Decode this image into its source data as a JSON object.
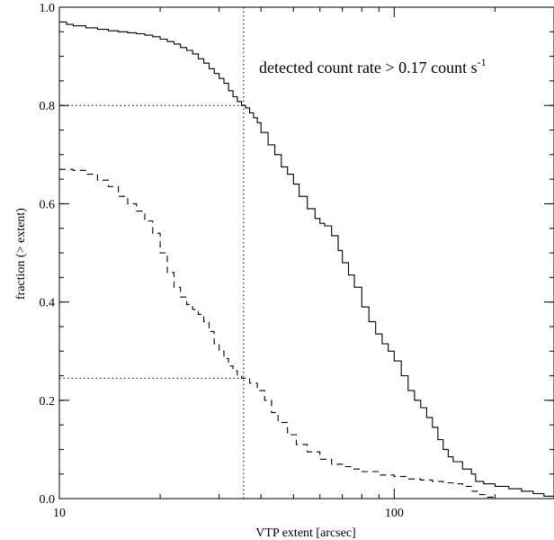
{
  "chart_data": {
    "type": "line",
    "title": "",
    "xlabel": "VTP extent [arcsec]",
    "ylabel": "fraction (> extent)",
    "xscale": "log",
    "xlim": [
      10,
      300
    ],
    "ylim": [
      0.0,
      1.0
    ],
    "xticks": [
      {
        "value": 10,
        "label": "10"
      },
      {
        "value": 100,
        "label": "100"
      }
    ],
    "yticks": [
      {
        "value": 0.0,
        "label": "0.0"
      },
      {
        "value": 0.2,
        "label": "0.2"
      },
      {
        "value": 0.4,
        "label": "0.4"
      },
      {
        "value": 0.6,
        "label": "0.6"
      },
      {
        "value": 0.8,
        "label": "0.8"
      },
      {
        "value": 1.0,
        "label": "1.0"
      }
    ],
    "grid": false,
    "annotation": {
      "text": "detected count rate > 0.17 count s",
      "superscript": "-1"
    },
    "reference_lines": [
      {
        "orientation": "vertical",
        "x": 35.5,
        "y_from": 0.0,
        "y_to": 1.0
      },
      {
        "orientation": "horizontal",
        "y": 0.8,
        "x_from": 10,
        "x_to": 35.5
      },
      {
        "orientation": "horizontal",
        "y": 0.245,
        "x_from": 10,
        "x_to": 35.5
      }
    ],
    "series": [
      {
        "style": "solid",
        "points": [
          [
            10,
            0.97
          ],
          [
            10.5,
            0.965
          ],
          [
            11,
            0.962
          ],
          [
            12,
            0.958
          ],
          [
            13,
            0.955
          ],
          [
            14,
            0.952
          ],
          [
            15,
            0.95
          ],
          [
            16,
            0.948
          ],
          [
            17,
            0.946
          ],
          [
            18,
            0.943
          ],
          [
            19,
            0.94
          ],
          [
            20,
            0.935
          ],
          [
            21,
            0.93
          ],
          [
            22,
            0.925
          ],
          [
            23,
            0.918
          ],
          [
            24,
            0.912
          ],
          [
            25,
            0.905
          ],
          [
            26,
            0.895
          ],
          [
            27,
            0.886
          ],
          [
            28,
            0.875
          ],
          [
            29,
            0.865
          ],
          [
            30,
            0.855
          ],
          [
            31,
            0.845
          ],
          [
            32,
            0.83
          ],
          [
            33,
            0.818
          ],
          [
            34,
            0.808
          ],
          [
            35,
            0.8
          ],
          [
            36,
            0.795
          ],
          [
            37,
            0.785
          ],
          [
            38,
            0.775
          ],
          [
            39,
            0.765
          ],
          [
            40,
            0.745
          ],
          [
            42,
            0.72
          ],
          [
            44,
            0.7
          ],
          [
            46,
            0.675
          ],
          [
            48,
            0.66
          ],
          [
            50,
            0.64
          ],
          [
            52,
            0.615
          ],
          [
            55,
            0.59
          ],
          [
            58,
            0.57
          ],
          [
            60,
            0.56
          ],
          [
            62,
            0.555
          ],
          [
            65,
            0.535
          ],
          [
            68,
            0.505
          ],
          [
            70,
            0.48
          ],
          [
            73,
            0.455
          ],
          [
            76,
            0.43
          ],
          [
            80,
            0.39
          ],
          [
            84,
            0.36
          ],
          [
            88,
            0.335
          ],
          [
            92,
            0.315
          ],
          [
            96,
            0.3
          ],
          [
            100,
            0.28
          ],
          [
            105,
            0.25
          ],
          [
            110,
            0.22
          ],
          [
            115,
            0.2
          ],
          [
            120,
            0.185
          ],
          [
            125,
            0.165
          ],
          [
            130,
            0.145
          ],
          [
            135,
            0.12
          ],
          [
            140,
            0.1
          ],
          [
            145,
            0.085
          ],
          [
            150,
            0.075
          ],
          [
            160,
            0.06
          ],
          [
            170,
            0.05
          ],
          [
            175,
            0.035
          ],
          [
            185,
            0.03
          ],
          [
            200,
            0.025
          ],
          [
            220,
            0.02
          ],
          [
            240,
            0.015
          ],
          [
            260,
            0.01
          ],
          [
            280,
            0.005
          ],
          [
            300,
            0.002
          ]
        ]
      },
      {
        "style": "dashed",
        "points": [
          [
            10,
            0.67
          ],
          [
            11,
            0.668
          ],
          [
            12,
            0.66
          ],
          [
            13,
            0.648
          ],
          [
            14,
            0.635
          ],
          [
            15,
            0.615
          ],
          [
            16,
            0.6
          ],
          [
            17,
            0.585
          ],
          [
            18,
            0.565
          ],
          [
            19,
            0.54
          ],
          [
            20,
            0.5
          ],
          [
            21,
            0.46
          ],
          [
            22,
            0.43
          ],
          [
            23,
            0.41
          ],
          [
            24,
            0.395
          ],
          [
            25,
            0.385
          ],
          [
            26,
            0.375
          ],
          [
            27,
            0.36
          ],
          [
            28,
            0.34
          ],
          [
            29,
            0.315
          ],
          [
            30,
            0.3
          ],
          [
            31,
            0.285
          ],
          [
            32,
            0.27
          ],
          [
            33,
            0.26
          ],
          [
            34,
            0.25
          ],
          [
            35,
            0.245
          ],
          [
            37,
            0.235
          ],
          [
            39,
            0.22
          ],
          [
            41,
            0.2
          ],
          [
            43,
            0.175
          ],
          [
            45,
            0.155
          ],
          [
            48,
            0.13
          ],
          [
            51,
            0.11
          ],
          [
            55,
            0.095
          ],
          [
            60,
            0.08
          ],
          [
            65,
            0.07
          ],
          [
            70,
            0.065
          ],
          [
            75,
            0.06
          ],
          [
            80,
            0.055
          ],
          [
            90,
            0.048
          ],
          [
            100,
            0.045
          ],
          [
            110,
            0.04
          ],
          [
            120,
            0.038
          ],
          [
            130,
            0.035
          ],
          [
            140,
            0.032
          ],
          [
            150,
            0.03
          ],
          [
            160,
            0.025
          ],
          [
            170,
            0.015
          ],
          [
            180,
            0.008
          ],
          [
            190,
            0.003
          ],
          [
            200,
            0.0
          ]
        ]
      }
    ]
  }
}
